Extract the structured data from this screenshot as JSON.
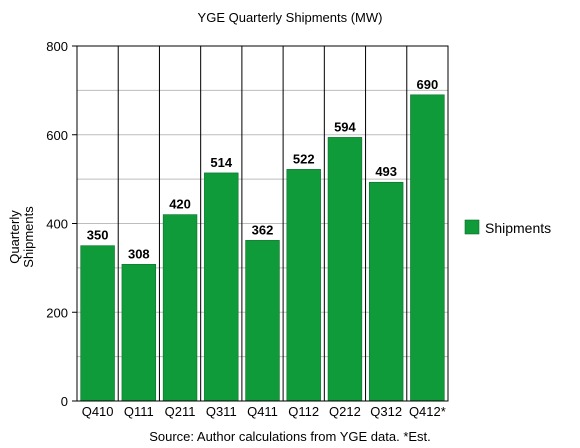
{
  "chart_data": {
    "type": "bar",
    "title": "YGE Quarterly Shipments (MW)",
    "ylabel_lines": [
      "Quarterly",
      "Shipments"
    ],
    "xlabel": "",
    "categories": [
      "Q410",
      "Q111",
      "Q211",
      "Q311",
      "Q411",
      "Q112",
      "Q212",
      "Q312",
      "Q412*"
    ],
    "series": [
      {
        "name": "Shipments",
        "values": [
          350,
          308,
          420,
          514,
          362,
          522,
          594,
          493,
          690
        ]
      }
    ],
    "data_labels": [
      "350",
      "308",
      "420",
      "514",
      "362",
      "522",
      "594",
      "493",
      "690"
    ],
    "ylim": [
      0,
      800
    ],
    "yticks": [
      0,
      200,
      400,
      600,
      800
    ],
    "grid": true,
    "legend_position": "right",
    "source": "Source: Author calculations from YGE data. *Est.",
    "colors": {
      "bar": "#0f9b3a",
      "bar_edge": "#0a6e29",
      "grid": "#bdbdbd",
      "axis": "#000000"
    }
  }
}
